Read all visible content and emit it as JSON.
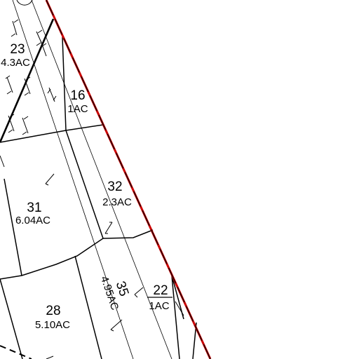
{
  "map": {
    "boundary_color": "#cc0000",
    "line_color": "#000000",
    "background": "#ffffff",
    "parcels": [
      {
        "id": "23",
        "area": "4.3AC"
      },
      {
        "id": "16",
        "area": "1AC"
      },
      {
        "id": "32",
        "area": "2.3AC"
      },
      {
        "id": "31",
        "area": "6.04AC"
      },
      {
        "id": "35",
        "area": "4.95AC"
      },
      {
        "id": "22",
        "area": "1AC"
      },
      {
        "id": "28",
        "area": "5.10AC"
      }
    ]
  }
}
